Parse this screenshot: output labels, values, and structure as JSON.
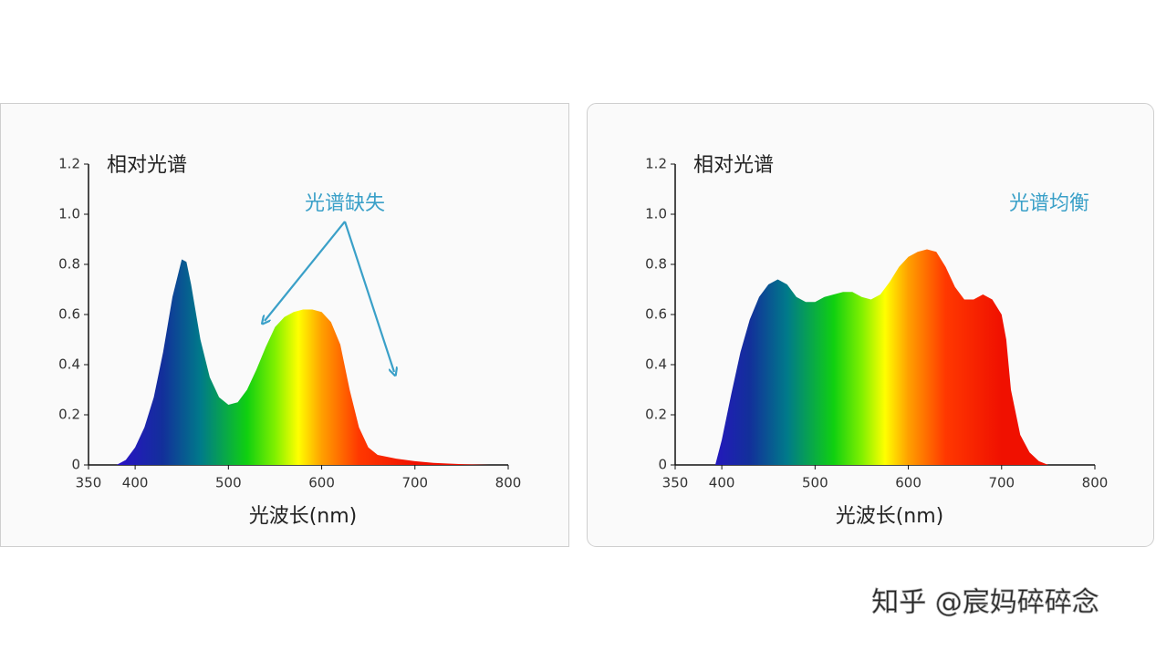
{
  "chart_data": [
    {
      "type": "area",
      "fill": "spectrum",
      "y_label": "相对光谱",
      "x_label": "光波长(nm)",
      "annotation": "光谱缺失",
      "x": [
        380,
        390,
        400,
        410,
        420,
        430,
        440,
        450,
        455,
        460,
        470,
        480,
        490,
        500,
        510,
        520,
        530,
        540,
        550,
        560,
        570,
        580,
        590,
        600,
        610,
        620,
        630,
        640,
        650,
        660,
        680,
        700,
        720,
        750,
        780
      ],
      "values": [
        0,
        0.02,
        0.07,
        0.15,
        0.27,
        0.45,
        0.67,
        0.82,
        0.81,
        0.72,
        0.5,
        0.35,
        0.27,
        0.24,
        0.25,
        0.3,
        0.38,
        0.47,
        0.55,
        0.59,
        0.61,
        0.62,
        0.62,
        0.61,
        0.57,
        0.48,
        0.3,
        0.15,
        0.07,
        0.04,
        0.025,
        0.015,
        0.008,
        0.003,
        0
      ],
      "xlim": [
        350,
        800
      ],
      "xticks": [
        350,
        400,
        500,
        600,
        700,
        800
      ],
      "ylim": [
        0,
        1.2
      ],
      "yticks": [
        0,
        0.2,
        0.4,
        0.6,
        0.8,
        {
          "value": 1,
          "label": "1.0"
        },
        1.2
      ]
    },
    {
      "type": "area",
      "fill": "spectrum",
      "y_label": "相对光谱",
      "x_label": "光波长(nm)",
      "annotation": "光谱均衡",
      "x": [
        393,
        400,
        410,
        420,
        430,
        440,
        450,
        460,
        470,
        480,
        490,
        500,
        510,
        520,
        530,
        540,
        550,
        560,
        570,
        580,
        590,
        600,
        610,
        620,
        630,
        640,
        650,
        660,
        670,
        680,
        690,
        700,
        705,
        710,
        720,
        730,
        740,
        750
      ],
      "values": [
        0,
        0.1,
        0.28,
        0.45,
        0.58,
        0.67,
        0.72,
        0.74,
        0.72,
        0.67,
        0.65,
        0.65,
        0.67,
        0.68,
        0.69,
        0.69,
        0.67,
        0.66,
        0.68,
        0.73,
        0.79,
        0.83,
        0.85,
        0.86,
        0.85,
        0.79,
        0.71,
        0.66,
        0.66,
        0.68,
        0.66,
        0.6,
        0.5,
        0.3,
        0.12,
        0.05,
        0.015,
        0
      ],
      "xlim": [
        350,
        800
      ],
      "xticks": [
        350,
        400,
        500,
        600,
        700,
        800
      ],
      "ylim": [
        0,
        1.2
      ],
      "yticks": [
        0,
        0.2,
        0.4,
        0.6,
        0.8,
        {
          "value": 1,
          "label": "1.0"
        },
        1.2
      ]
    }
  ],
  "watermark": "知乎 @宸妈碎碎念"
}
